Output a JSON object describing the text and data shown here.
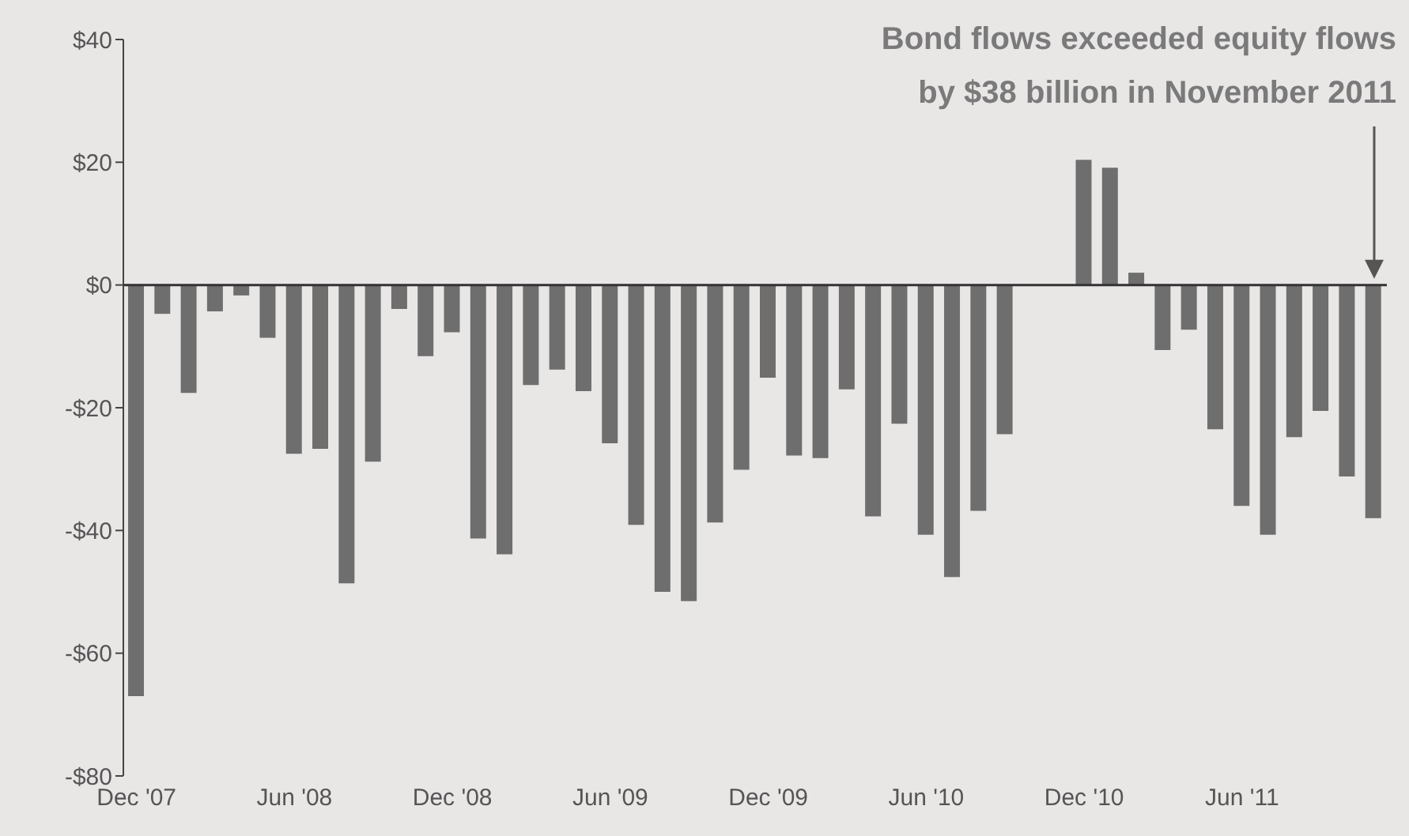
{
  "chart_data": {
    "type": "bar",
    "categories": [
      "Dec '07",
      null,
      null,
      null,
      null,
      null,
      "Jun '08",
      null,
      null,
      null,
      null,
      null,
      "Dec '08",
      null,
      null,
      null,
      null,
      null,
      "Jun '09",
      null,
      null,
      null,
      null,
      null,
      "Dec '09",
      null,
      null,
      null,
      null,
      null,
      "Jun '10",
      null,
      null,
      null,
      null,
      null,
      "Dec '10",
      null,
      null,
      null,
      null,
      null,
      "Jun '11",
      null,
      null,
      null,
      null,
      null
    ],
    "values": [
      -67,
      -4.7,
      -17.6,
      -4.3,
      -1.7,
      -8.6,
      -27.5,
      -26.7,
      -48.6,
      -28.8,
      -3.9,
      -11.6,
      -7.7,
      -41.3,
      -43.9,
      -16.3,
      -13.8,
      -17.3,
      -25.8,
      -39.1,
      -50,
      -51.5,
      -38.7,
      -30.1,
      -15.1,
      -27.8,
      -28.2,
      -17,
      -37.7,
      -22.6,
      -40.7,
      -47.6,
      -36.8,
      -24.3,
      0,
      0,
      20.4,
      19.1,
      2,
      -10.6,
      -7.3,
      -23.5,
      -36,
      -40.7,
      -24.8,
      -20.5,
      -31.2,
      -38
    ],
    "color": "#6e6e6e",
    "ylim": [
      -80,
      40
    ],
    "yticks": [
      {
        "value": 40,
        "label": "$40"
      },
      {
        "value": 20,
        "label": "$20"
      },
      {
        "value": 0,
        "label": "$0"
      },
      {
        "value": -20,
        "label": "-$20"
      },
      {
        "value": -40,
        "label": "-$40"
      },
      {
        "value": -60,
        "label": "-$60"
      },
      {
        "value": -80,
        "label": "-$80"
      }
    ],
    "annotations": [
      "Bond flows exceeded equity flows\nby $38 billion in November 2011"
    ],
    "legend": false
  }
}
